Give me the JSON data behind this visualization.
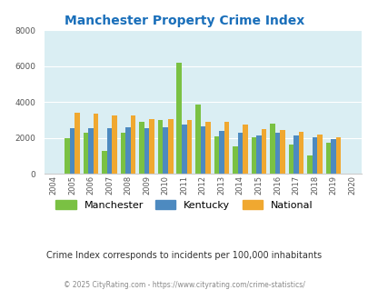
{
  "title": "Manchester Property Crime Index",
  "years": [
    2004,
    2005,
    2006,
    2007,
    2008,
    2009,
    2010,
    2011,
    2012,
    2013,
    2014,
    2015,
    2016,
    2017,
    2018,
    2019,
    2020
  ],
  "manchester": [
    null,
    2000,
    2300,
    1300,
    2300,
    2900,
    3000,
    6200,
    3850,
    2100,
    1550,
    2050,
    2800,
    1650,
    1050,
    1750,
    null
  ],
  "kentucky": [
    null,
    2550,
    2550,
    2550,
    2600,
    2550,
    2600,
    2750,
    2650,
    2400,
    2300,
    2150,
    2300,
    2150,
    2050,
    1950,
    null
  ],
  "national": [
    null,
    3380,
    3350,
    3270,
    3250,
    3060,
    3030,
    2980,
    2900,
    2900,
    2750,
    2490,
    2450,
    2360,
    2200,
    2050,
    null
  ],
  "manchester_color": "#7ac143",
  "kentucky_color": "#4d8ac0",
  "national_color": "#f0a830",
  "bg_color": "#daeef3",
  "ylim": [
    0,
    8000
  ],
  "yticks": [
    0,
    2000,
    4000,
    6000,
    8000
  ],
  "subtitle": "Crime Index corresponds to incidents per 100,000 inhabitants",
  "footer": "© 2025 CityRating.com - https://www.cityrating.com/crime-statistics/",
  "title_color": "#1a6fba",
  "subtitle_color": "#333333",
  "footer_color": "#888888"
}
